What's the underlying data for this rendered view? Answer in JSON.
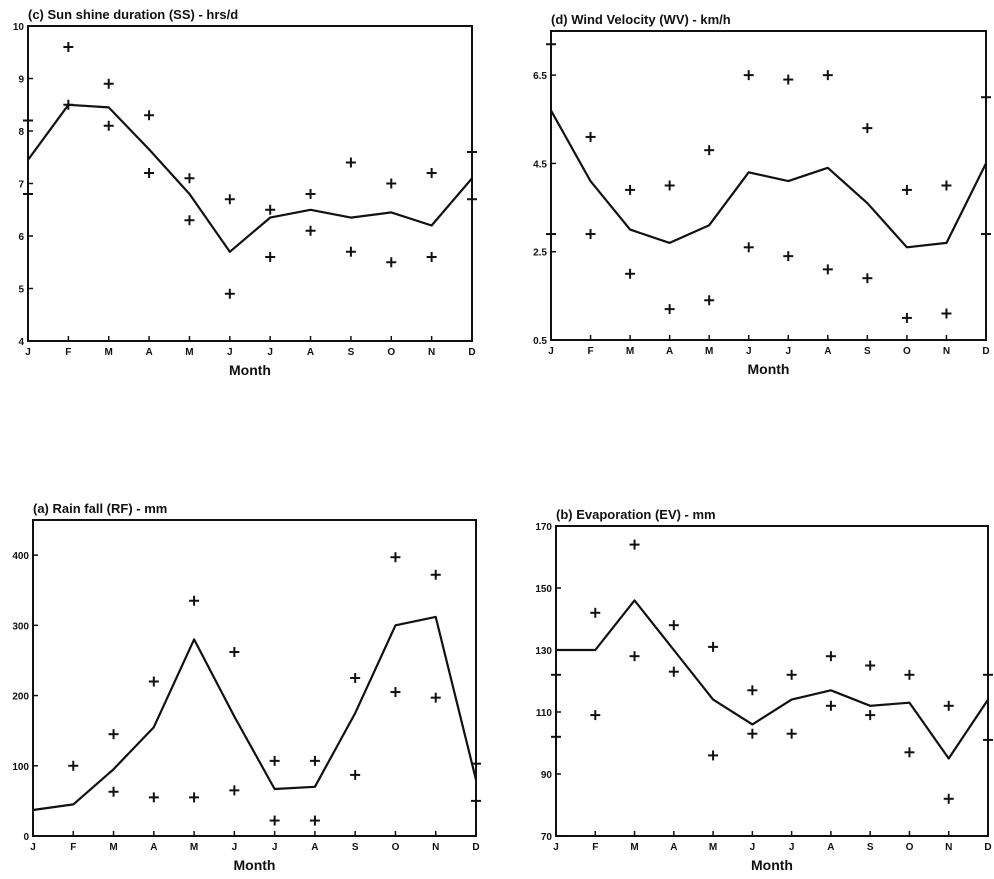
{
  "chart_data": [
    {
      "id": "c",
      "type": "line",
      "title": "(c) Sun shine duration (SS) - hrs/d",
      "xlabel": "Month",
      "ylabel": "",
      "categories": [
        "J",
        "F",
        "M",
        "A",
        "M",
        "J",
        "J",
        "A",
        "S",
        "O",
        "N",
        "D"
      ],
      "ylim": [
        4,
        10
      ],
      "yticks": [
        4,
        5,
        6,
        7,
        8,
        9,
        10
      ],
      "ytick_labels": [
        "4",
        "5",
        "6",
        "7",
        "8",
        "9",
        "10"
      ],
      "series": [
        {
          "role": "mean",
          "values": [
            7.45,
            8.5,
            8.45,
            7.65,
            6.8,
            5.7,
            6.35,
            6.5,
            6.35,
            6.45,
            6.2,
            7.1
          ]
        },
        {
          "role": "upper",
          "values": [
            8.2,
            9.6,
            8.9,
            8.3,
            7.1,
            6.7,
            6.5,
            6.8,
            7.4,
            7.0,
            7.2,
            7.6
          ]
        },
        {
          "role": "lower",
          "values": [
            6.8,
            8.5,
            8.1,
            7.2,
            6.3,
            4.9,
            5.6,
            6.1,
            5.7,
            5.5,
            5.6,
            6.7
          ]
        }
      ]
    },
    {
      "id": "d",
      "type": "line",
      "title": "(d) Wind Velocity (WV) - km/h",
      "xlabel": "Month",
      "ylabel": "",
      "categories": [
        "J",
        "F",
        "M",
        "A",
        "M",
        "J",
        "J",
        "A",
        "S",
        "O",
        "N",
        "D"
      ],
      "ylim": [
        0.5,
        7.5
      ],
      "yticks": [
        0.5,
        2.5,
        4.5,
        6.5
      ],
      "ytick_labels": [
        "0.5",
        "2.5",
        "4.5",
        "6.5"
      ],
      "series": [
        {
          "role": "mean",
          "values": [
            5.7,
            4.1,
            3.0,
            2.7,
            3.1,
            4.3,
            4.1,
            4.4,
            3.6,
            2.6,
            2.7,
            4.5
          ]
        },
        {
          "role": "upper",
          "values": [
            7.2,
            5.1,
            3.9,
            4.0,
            4.8,
            6.5,
            6.4,
            6.5,
            5.3,
            3.9,
            4.0,
            6.0
          ]
        },
        {
          "role": "lower",
          "values": [
            2.9,
            2.9,
            2.0,
            1.2,
            1.4,
            2.6,
            2.4,
            2.1,
            1.9,
            1.0,
            1.1,
            2.9
          ]
        }
      ]
    },
    {
      "id": "a",
      "type": "line",
      "title": "(a) Rain fall (RF) - mm",
      "xlabel": "Month",
      "ylabel": "",
      "categories": [
        "J",
        "F",
        "M",
        "A",
        "M",
        "J",
        "J",
        "A",
        "S",
        "O",
        "N",
        "D"
      ],
      "ylim": [
        0,
        450
      ],
      "yticks": [
        0,
        100,
        200,
        300,
        400
      ],
      "ytick_labels": [
        "0",
        "100",
        "200",
        "300",
        "400"
      ],
      "series": [
        {
          "role": "mean",
          "values": [
            37,
            45,
            95,
            155,
            280,
            170,
            67,
            70,
            175,
            300,
            312,
            80
          ]
        },
        {
          "role": "upper",
          "values": [
            null,
            100,
            145,
            220,
            335,
            262,
            107,
            107,
            225,
            397,
            372,
            103
          ]
        },
        {
          "role": "lower",
          "values": [
            null,
            null,
            63,
            55,
            55,
            65,
            22,
            22,
            87,
            205,
            197,
            50
          ]
        }
      ]
    },
    {
      "id": "b",
      "type": "line",
      "title": "(b) Evaporation (EV) - mm",
      "xlabel": "Month",
      "ylabel": "",
      "categories": [
        "J",
        "F",
        "M",
        "A",
        "M",
        "J",
        "J",
        "A",
        "S",
        "O",
        "N",
        "D"
      ],
      "ylim": [
        70,
        170
      ],
      "yticks": [
        70,
        90,
        110,
        130,
        150,
        170
      ],
      "ytick_labels": [
        "70",
        "90",
        "110",
        "130",
        "150",
        "170"
      ],
      "series": [
        {
          "role": "mean",
          "values": [
            130,
            130,
            146,
            130,
            114,
            106,
            114,
            117,
            112,
            113,
            95,
            114
          ]
        },
        {
          "role": "upper",
          "values": [
            122,
            142,
            164,
            138,
            131,
            117,
            122,
            128,
            125,
            122,
            112,
            122
          ]
        },
        {
          "role": "lower",
          "values": [
            102,
            109,
            128,
            123,
            96,
            103,
            103,
            112,
            109,
            97,
            82,
            101
          ]
        }
      ]
    }
  ]
}
